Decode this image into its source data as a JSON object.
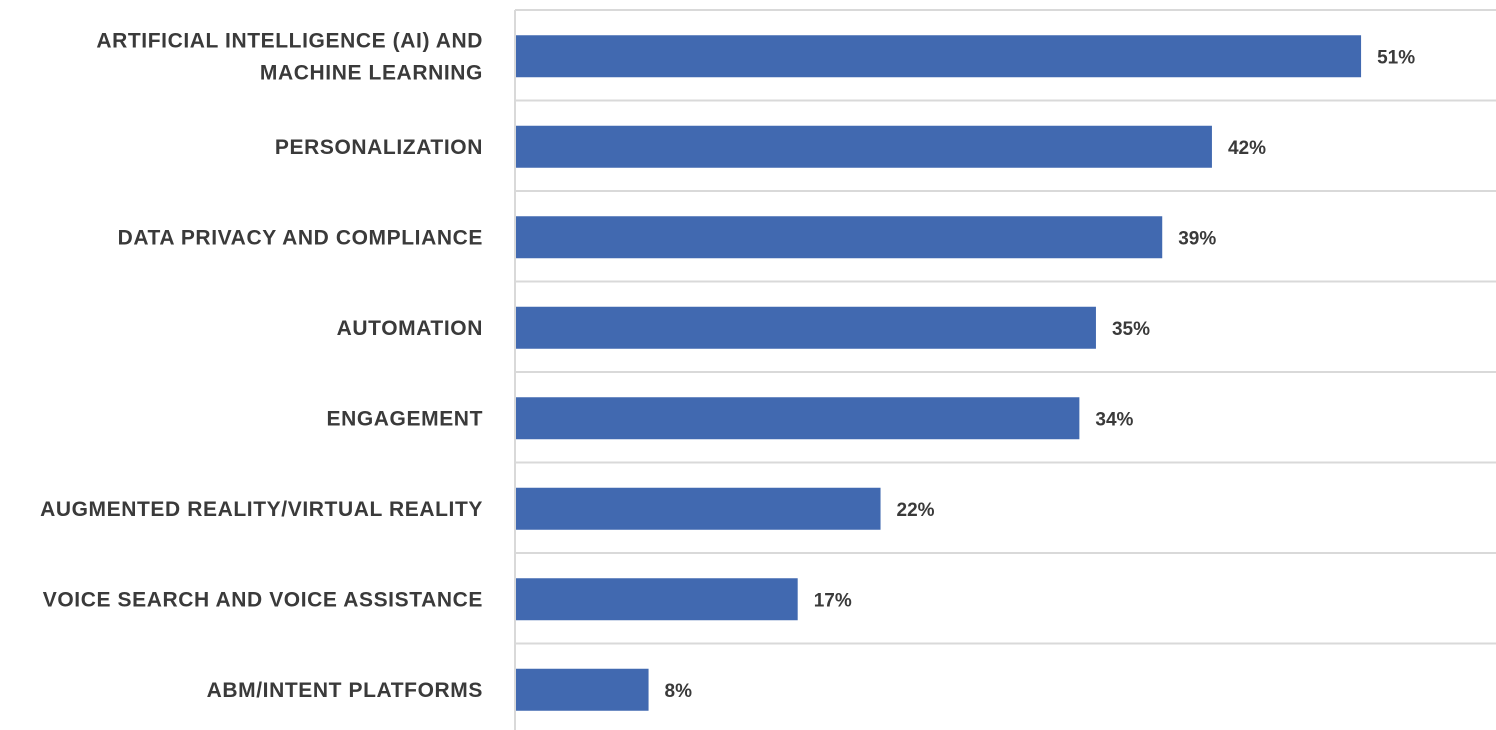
{
  "chart_data": {
    "type": "bar",
    "orientation": "horizontal",
    "title": "",
    "xlabel": "",
    "ylabel": "",
    "categories": [
      [
        "ARTIFICIAL INTELLIGENCE (AI) AND",
        "MACHINE LEARNING"
      ],
      [
        "PERSONALIZATION"
      ],
      [
        "DATA PRIVACY AND COMPLIANCE"
      ],
      [
        "AUTOMATION"
      ],
      [
        "ENGAGEMENT"
      ],
      [
        "AUGMENTED REALITY/VIRTUAL REALITY"
      ],
      [
        "VOICE SEARCH AND VOICE ASSISTANCE"
      ],
      [
        "ABM/INTENT PLATFORMS"
      ]
    ],
    "values": [
      51,
      42,
      39,
      35,
      34,
      22,
      17,
      8
    ],
    "value_labels": [
      "51%",
      "42%",
      "39%",
      "35%",
      "34%",
      "22%",
      "17%",
      "8%"
    ],
    "xlim": [
      0,
      59
    ],
    "grid": true,
    "bar_color": "#4169b0",
    "legend": "none"
  }
}
